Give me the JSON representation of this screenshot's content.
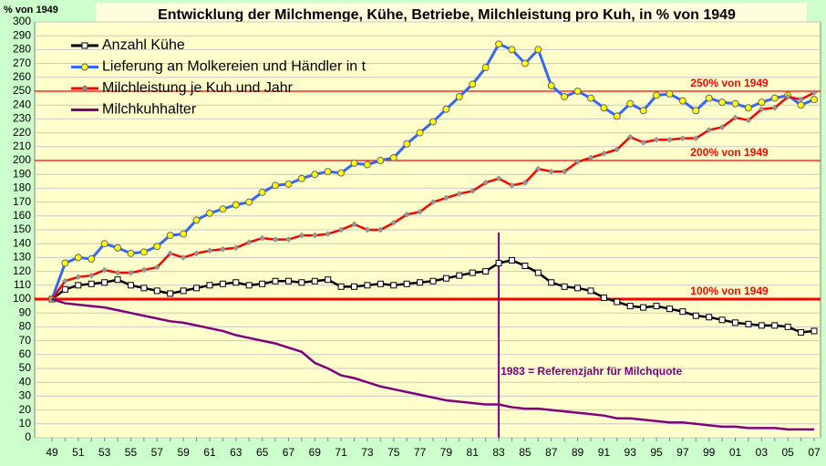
{
  "chart_data": {
    "type": "line",
    "title": "Entwicklung der Milchmenge, Kühe, Betriebe, Milchleistung pro Kuh, in % von 1949",
    "y_label": "% von 1949",
    "categories": [
      "49",
      null,
      "51",
      null,
      "53",
      null,
      "55",
      null,
      "57",
      null,
      "59",
      null,
      "61",
      null,
      "63",
      null,
      "65",
      null,
      "67",
      null,
      "69",
      null,
      "71",
      null,
      "73",
      null,
      "75",
      null,
      "77",
      null,
      "79",
      null,
      "81",
      null,
      "83",
      null,
      "85",
      null,
      "87",
      null,
      "89",
      null,
      "91",
      null,
      "93",
      null,
      "95",
      null,
      "97",
      null,
      "99",
      null,
      "01",
      null,
      "03",
      null,
      "05",
      null,
      "07"
    ],
    "ylim": [
      0,
      300
    ],
    "yticks": [
      0,
      10,
      20,
      30,
      40,
      50,
      60,
      70,
      80,
      90,
      100,
      110,
      120,
      130,
      140,
      150,
      160,
      170,
      180,
      190,
      200,
      210,
      220,
      230,
      240,
      250,
      260,
      270,
      280,
      290,
      300
    ],
    "grid": true,
    "legend": "top-left",
    "series": [
      {
        "name": "Anzahl Kühe",
        "color": "#000000",
        "marker": "square",
        "marker_color": "#ffffff",
        "values": [
          100,
          107,
          110,
          111,
          112,
          114,
          110,
          108,
          106,
          104,
          106,
          108,
          110,
          111,
          112,
          110,
          111,
          113,
          113,
          112,
          113,
          114,
          109,
          109,
          110,
          111,
          110,
          111,
          112,
          113,
          115,
          117,
          119,
          120,
          126,
          128,
          124,
          119,
          112,
          109,
          108,
          106,
          101,
          98,
          95,
          94,
          95,
          93,
          91,
          88,
          87,
          85,
          83,
          82,
          81,
          81,
          80,
          76,
          77
        ]
      },
      {
        "name": "Lieferung an Molkereien und Händler in t",
        "color": "#3366ff",
        "marker": "circle",
        "marker_color": "#ffff00",
        "values": [
          100,
          126,
          130,
          129,
          140,
          137,
          133,
          134,
          138,
          146,
          147,
          157,
          162,
          165,
          168,
          170,
          177,
          182,
          183,
          187,
          190,
          192,
          191,
          198,
          197,
          200,
          202,
          212,
          220,
          228,
          237,
          246,
          255,
          267,
          284,
          280,
          270,
          280,
          254,
          246,
          250,
          245,
          238,
          232,
          241,
          236,
          247,
          248,
          243,
          236,
          245,
          242,
          241,
          238,
          242,
          245,
          247,
          240,
          244
        ]
      },
      {
        "name": "Milchleistung je Kuh und Jahr",
        "color": "#ff0000",
        "marker": "diamond",
        "marker_color": "#999999",
        "values": [
          100,
          113,
          116,
          117,
          121,
          119,
          119,
          121,
          123,
          133,
          130,
          133,
          135,
          136,
          137,
          141,
          144,
          143,
          143,
          146,
          146,
          147,
          150,
          154,
          150,
          150,
          155,
          161,
          163,
          170,
          173,
          176,
          178,
          184,
          187,
          182,
          184,
          194,
          192,
          192,
          199,
          202,
          205,
          208,
          217,
          213,
          215,
          215,
          216,
          216,
          222,
          224,
          231,
          229,
          237,
          238,
          246,
          244,
          249
        ]
      },
      {
        "name": "Milchkuhhalter",
        "color": "#800080",
        "marker": "none",
        "marker_color": "#800080",
        "values": [
          100,
          97,
          96,
          95,
          94,
          92,
          90,
          88,
          86,
          84,
          83,
          81,
          79,
          77,
          74,
          72,
          70,
          68,
          65,
          62,
          54,
          50,
          45,
          43,
          40,
          37,
          35,
          33,
          31,
          29,
          27,
          26,
          25,
          24,
          24,
          22,
          21,
          21,
          20,
          19,
          18,
          17,
          16,
          14,
          14,
          13,
          12,
          11,
          11,
          10,
          9,
          8,
          8,
          7,
          7,
          7,
          6,
          6,
          6
        ]
      }
    ],
    "reference_lines": [
      {
        "value": 250,
        "label": "250% von 1949",
        "color": "#ff0000"
      },
      {
        "value": 200,
        "label": "200% von 1949",
        "color": "#ff0000"
      },
      {
        "value": 100,
        "label": "100% von 1949",
        "color": "#ff0000"
      }
    ],
    "annotation": {
      "text": "1983 = Referenzjahr für Milchquote",
      "x": "83",
      "color": "#800080"
    }
  }
}
